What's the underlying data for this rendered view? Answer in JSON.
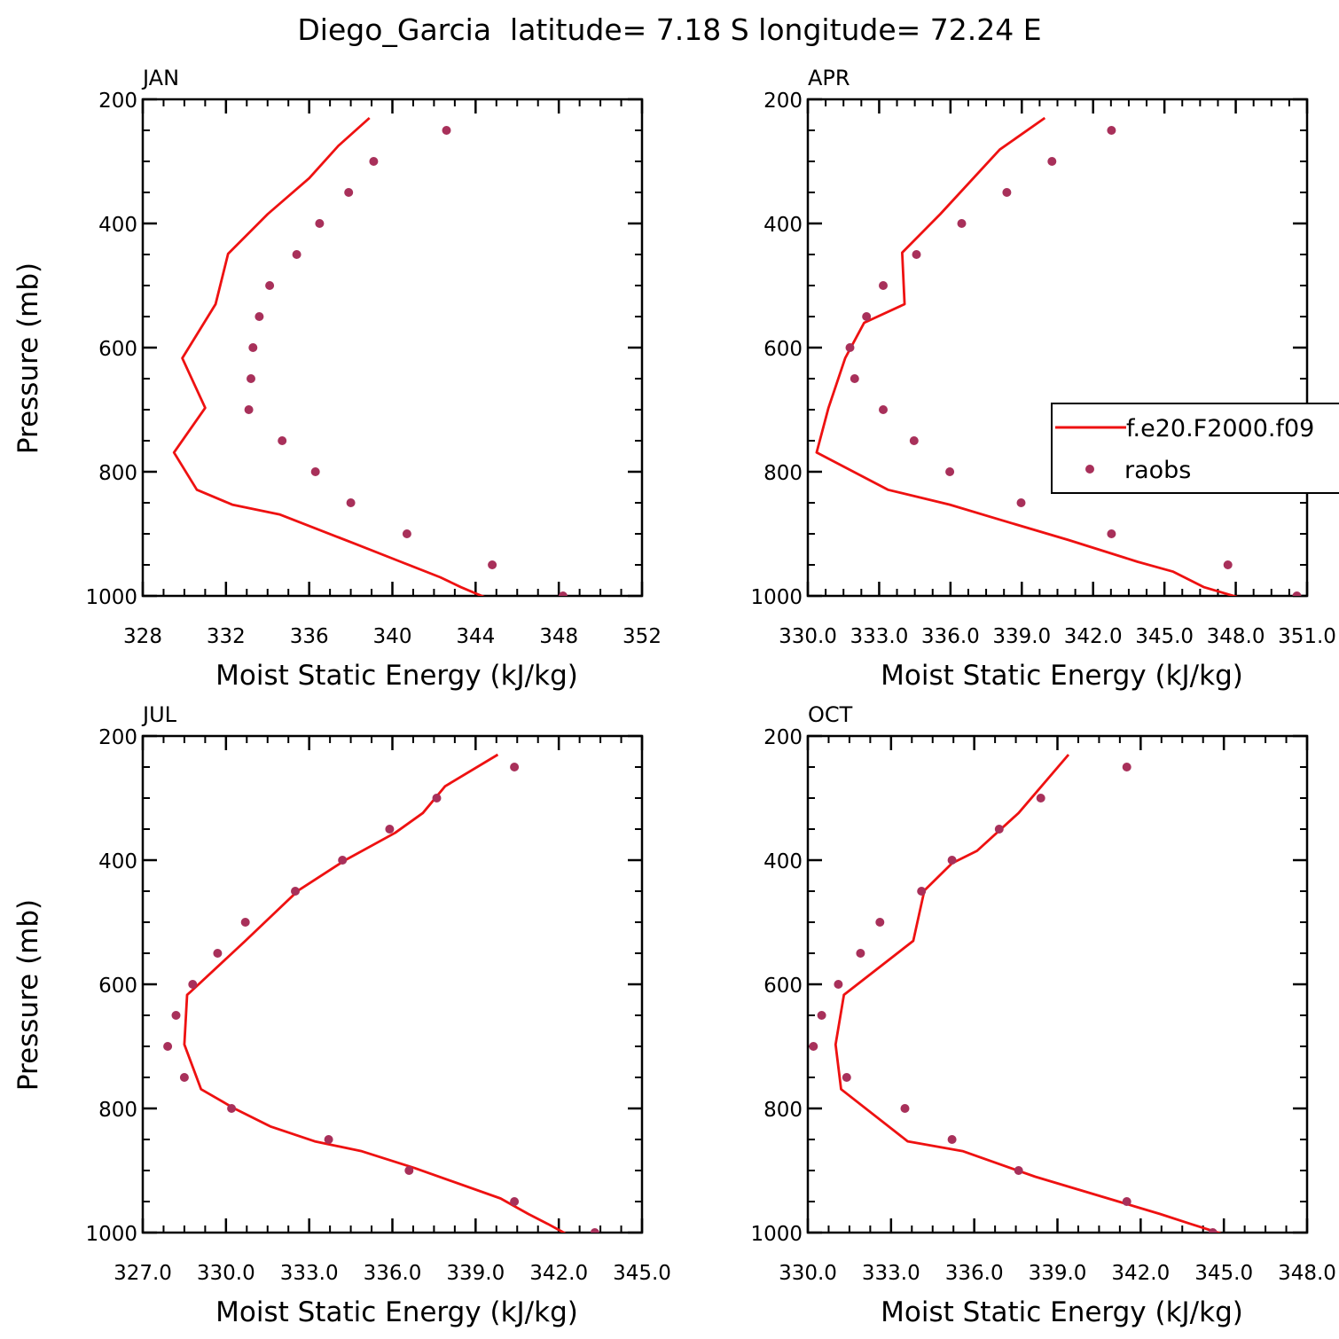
{
  "title": "Diego_Garcia  latitude= 7.18 S longitude= 72.24 E",
  "colors": {
    "model": "#ee1111",
    "obs": "#a8305a"
  },
  "legend": {
    "model_label": "f.e20.F2000.f09",
    "obs_label": "raobs"
  },
  "chart_data": [
    {
      "type": "line",
      "panel": "JAN",
      "xlabel": "Moist Static Energy (kJ/kg)",
      "ylabel": "Pressure (mb)",
      "xlim": [
        328,
        352
      ],
      "ylim": [
        1000,
        200
      ],
      "xticks": [
        "328",
        "332",
        "336",
        "340",
        "344",
        "348",
        "352"
      ],
      "yticks": [
        "200",
        "400",
        "600",
        "800",
        "1000"
      ],
      "series": [
        {
          "name": "f.e20.F2000.f09",
          "kind": "line",
          "x": [
            344.5,
            343.3,
            342.3,
            340.4,
            338.2,
            334.6,
            332.3,
            330.6,
            329.5,
            331.0,
            329.9,
            331.5,
            332.1,
            334.0,
            336.0,
            337.4,
            338.9
          ],
          "y": [
            1003,
            986,
            970,
            945,
            916,
            869,
            853,
            829,
            769,
            697,
            617,
            530,
            449,
            385,
            327,
            275,
            230
          ]
        },
        {
          "name": "raobs",
          "kind": "scatter",
          "x": [
            348.2,
            344.8,
            340.7,
            338.0,
            336.3,
            334.7,
            333.1,
            333.2,
            333.3,
            333.6,
            334.1,
            335.4,
            336.5,
            337.9,
            339.1,
            342.6
          ],
          "y": [
            1000,
            950,
            900,
            850,
            800,
            750,
            700,
            650,
            600,
            550,
            500,
            450,
            400,
            350,
            300,
            250
          ]
        }
      ]
    },
    {
      "type": "line",
      "panel": "APR",
      "xlabel": "Moist Static Energy (kJ/kg)",
      "ylabel": "",
      "xlim": [
        330.03,
        351.03
      ],
      "ylim": [
        1000,
        200
      ],
      "xticks": [
        "330.0",
        "333.0",
        "336.0",
        "339.0",
        "342.0",
        "345.0",
        "348.0",
        "351.0"
      ],
      "yticks": [
        "200",
        "400",
        "600",
        "800",
        "1000"
      ],
      "series": [
        {
          "name": "f.e20.F2000.f09",
          "kind": "line",
          "x": [
            348.2,
            346.7,
            345.4,
            343.9,
            341.0,
            338.0,
            336.0,
            333.4,
            330.4,
            330.9,
            331.6,
            332.4,
            334.1,
            334.0,
            335.6,
            338.1,
            340.0
          ],
          "y": [
            1003,
            986,
            961,
            945,
            910,
            876,
            853,
            829,
            769,
            697,
            617,
            560,
            530,
            447,
            385,
            281,
            230
          ]
        },
        {
          "name": "raobs",
          "kind": "scatter",
          "x": [
            350.6,
            347.7,
            342.8,
            339.0,
            336.0,
            334.5,
            333.2,
            332.0,
            331.8,
            332.5,
            333.2,
            334.6,
            336.5,
            338.4,
            340.3,
            342.8
          ],
          "y": [
            1000,
            950,
            900,
            850,
            800,
            750,
            700,
            650,
            600,
            550,
            500,
            450,
            400,
            350,
            300,
            250
          ]
        }
      ]
    },
    {
      "type": "line",
      "panel": "JUL",
      "xlabel": "Moist Static Energy (kJ/kg)",
      "ylabel": "Pressure (mb)",
      "xlim": [
        327.0,
        345.0
      ],
      "ylim": [
        1000,
        200
      ],
      "xticks": [
        "327.0",
        "330.0",
        "333.0",
        "336.0",
        "339.0",
        "342.0",
        "345.0"
      ],
      "yticks": [
        "200",
        "400",
        "600",
        "800",
        "1000"
      ],
      "series": [
        {
          "name": "f.e20.F2000.f09",
          "kind": "line",
          "x": [
            342.3,
            341.6,
            340.9,
            339.9,
            336.8,
            334.9,
            333.2,
            331.6,
            330.3,
            329.1,
            328.5,
            328.6,
            328.7,
            330.7,
            332.6,
            334.3,
            336.1,
            337.1,
            337.9,
            339.8
          ],
          "y": [
            1003,
            986,
            970,
            945,
            896,
            869,
            853,
            829,
            800,
            769,
            697,
            617,
            613,
            530,
            449,
            400,
            356,
            324,
            281,
            230
          ]
        },
        {
          "name": "raobs",
          "kind": "scatter",
          "x": [
            343.3,
            340.4,
            336.6,
            333.7,
            330.2,
            328.5,
            327.9,
            328.2,
            328.8,
            329.7,
            330.7,
            332.5,
            334.2,
            335.9,
            337.6,
            340.4
          ],
          "y": [
            1000,
            950,
            900,
            850,
            800,
            750,
            700,
            650,
            600,
            550,
            500,
            450,
            400,
            350,
            300,
            250
          ]
        }
      ]
    },
    {
      "type": "line",
      "panel": "OCT",
      "xlabel": "Moist Static Energy (kJ/kg)",
      "ylabel": "",
      "xlim": [
        330.0,
        348.0
      ],
      "ylim": [
        1000,
        200
      ],
      "xticks": [
        "330.0",
        "333.0",
        "336.0",
        "339.0",
        "342.0",
        "345.0",
        "348.0"
      ],
      "yticks": [
        "200",
        "400",
        "600",
        "800",
        "1000"
      ],
      "series": [
        {
          "name": "f.e20.F2000.f09",
          "kind": "line",
          "x": [
            345.0,
            343.8,
            342.7,
            341.8,
            338.2,
            335.6,
            333.6,
            331.2,
            331.0,
            331.3,
            333.8,
            334.2,
            335.2,
            336.1,
            337.6,
            339.4
          ],
          "y": [
            1003,
            986,
            970,
            958,
            910,
            869,
            853,
            769,
            697,
            617,
            530,
            449,
            405,
            385,
            324,
            230
          ]
        },
        {
          "name": "raobs",
          "kind": "scatter",
          "x": [
            344.6,
            341.5,
            337.6,
            335.2,
            333.5,
            331.4,
            330.2,
            330.5,
            331.1,
            331.9,
            332.6,
            334.1,
            335.2,
            336.9,
            338.4,
            341.5
          ],
          "y": [
            1000,
            950,
            900,
            850,
            800,
            750,
            700,
            650,
            600,
            550,
            500,
            450,
            400,
            350,
            300,
            250
          ]
        }
      ]
    }
  ]
}
